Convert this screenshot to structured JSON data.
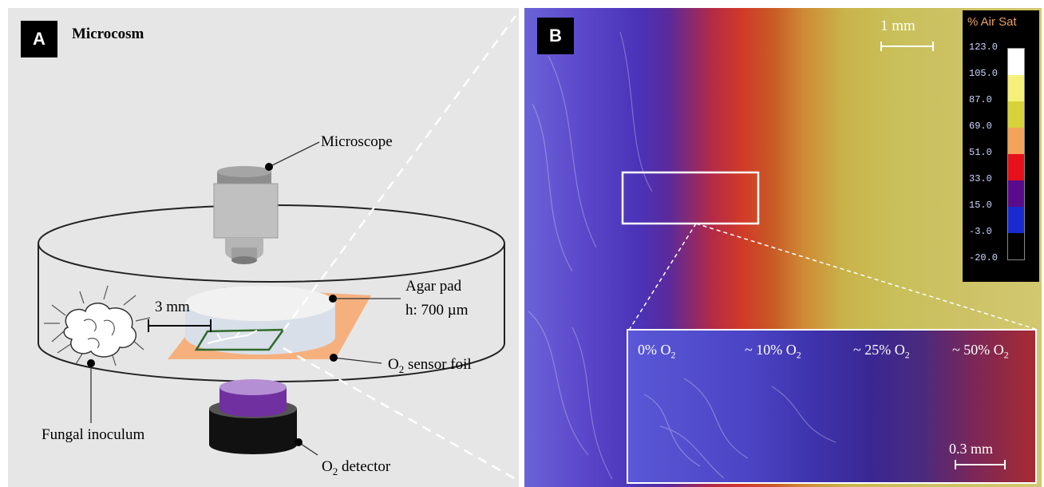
{
  "panel_a": {
    "badge": "A",
    "title": "Microcosm",
    "labels": {
      "microscope": "Microscope",
      "agar_pad": "Agar pad",
      "agar_height": "h: 700 µm",
      "distance": "3 mm",
      "sensor_foil_prefix": "O",
      "sensor_foil_sub": "2",
      "sensor_foil_suffix": " sensor foil",
      "fungal": "Fungal inoculum",
      "detector_prefix": "O",
      "detector_sub": "2",
      "detector_suffix": " detector"
    }
  },
  "panel_b": {
    "badge": "B",
    "scale_main": "1 mm",
    "scale_inset": "0.3 mm",
    "colorbar_title": "% Air Sat",
    "colorbar_ticks": [
      "123.0",
      "105.0",
      "87.0",
      "69.0",
      "51.0",
      "33.0",
      "15.0",
      "-3.0",
      "-20.0"
    ],
    "colorbar_colors": [
      "#ffffff",
      "#f5f07a",
      "#d8d23a",
      "#f3a35a",
      "#e8101a",
      "#5a0a8c",
      "#1a2ad0",
      "#000000"
    ],
    "inset_labels": [
      {
        "prefix": "0% O",
        "sub": "2"
      },
      {
        "prefix": "~ 10% O",
        "sub": "2"
      },
      {
        "prefix": "~ 25% O",
        "sub": "2"
      },
      {
        "prefix": "~ 50% O",
        "sub": "2"
      }
    ]
  }
}
